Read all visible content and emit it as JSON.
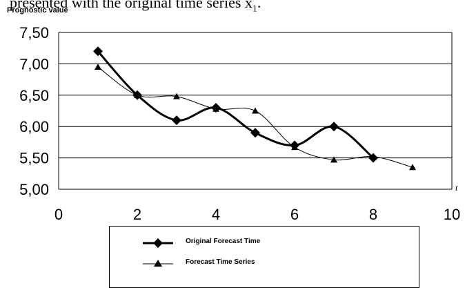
{
  "caption_fragment": "presented with the original time series x",
  "caption_subscript": "1",
  "caption_end": ".",
  "chart_data": {
    "type": "line",
    "title": "",
    "ylabel": "Prognostic value",
    "xlabel": "t",
    "xlim": [
      0,
      10
    ],
    "ylim": [
      5.0,
      7.5
    ],
    "x_ticks": [
      "0",
      "2",
      "4",
      "6",
      "8",
      "10"
    ],
    "y_ticks": [
      "7,50",
      "7,00",
      "6,50",
      "6,00",
      "5,50",
      "5,00"
    ],
    "grid": "horizontal",
    "legend_position": "bottom",
    "series": [
      {
        "name": "Original Forecast Time",
        "marker": "diamond",
        "color": "#000000",
        "line": "thick",
        "x": [
          1,
          2,
          3,
          4,
          5,
          6,
          7,
          8
        ],
        "y": [
          7.2,
          6.5,
          6.1,
          6.3,
          5.9,
          5.7,
          6.0,
          5.5
        ]
      },
      {
        "name": "Forecast Time Series",
        "marker": "triangle",
        "color": "#000000",
        "line": "thin",
        "x": [
          1,
          2,
          3,
          4,
          5,
          6,
          7,
          8,
          9
        ],
        "y": [
          6.95,
          6.5,
          6.48,
          6.28,
          6.25,
          5.67,
          5.47,
          5.52,
          5.35
        ]
      }
    ]
  }
}
